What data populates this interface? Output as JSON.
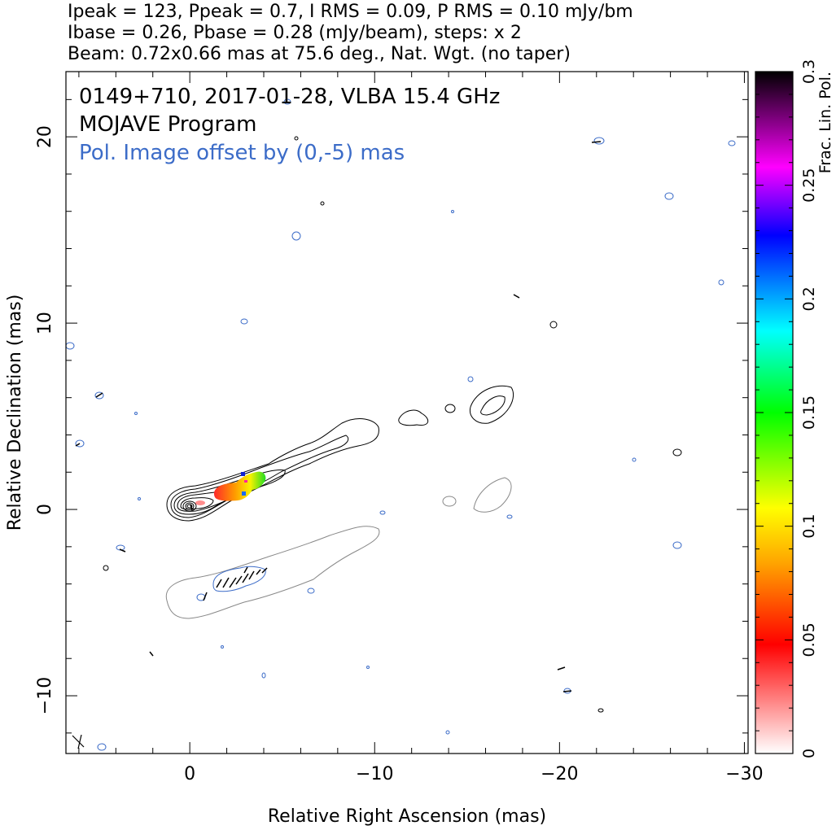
{
  "header": {
    "line1": "Ipeak = 123, Ppeak = 0.7, I RMS = 0.09, P RMS = 0.10 mJy/bm",
    "line2": "Ibase = 0.26, Pbase = 0.28 (mJy/beam), steps: x 2",
    "line3": "Beam: 0.72x0.66 mas at 75.6 deg., Nat. Wgt. (no taper)"
  },
  "chart_data": {
    "type": "contour",
    "title_lines": [
      "0149+710, 2017-01-28, VLBA 15.4 GHz",
      "MOJAVE Program"
    ],
    "annotation": "Pol. Image offset by (0,-5) mas",
    "xlabel": "Relative Right Ascension (mas)",
    "ylabel": "Relative Declination (mas)",
    "xlim": [
      6.7,
      -30.2
    ],
    "ylim": [
      -13.1,
      23.5
    ],
    "x_ticks": [
      {
        "value": 0,
        "label": "0"
      },
      {
        "value": -10,
        "label": "−10"
      },
      {
        "value": -20,
        "label": "−20"
      },
      {
        "value": -30,
        "label": "−30"
      }
    ],
    "y_ticks": [
      {
        "value": -10,
        "label": "−10"
      },
      {
        "value": 0,
        "label": "0"
      },
      {
        "value": 10,
        "label": "10"
      },
      {
        "value": 20,
        "label": "20"
      }
    ],
    "colorbar": {
      "label": "Frac. Lin. Pol.",
      "range": [
        0,
        0.3
      ],
      "ticks": [
        {
          "value": 0,
          "label": "0"
        },
        {
          "value": 0.05,
          "label": "0.05"
        },
        {
          "value": 0.1,
          "label": "0.1"
        },
        {
          "value": 0.15,
          "label": "0.15"
        },
        {
          "value": 0.2,
          "label": "0.2"
        },
        {
          "value": 0.25,
          "label": "0.25"
        },
        {
          "value": 0.3,
          "label": "0.3"
        }
      ],
      "stops": [
        "#ffffff",
        "#ff0000",
        "#ffa500",
        "#ffff00",
        "#00ff00",
        "#00ffff",
        "#0000ff",
        "#ff00ff",
        "#000000"
      ]
    },
    "core": {
      "x": 0,
      "y": 0
    },
    "fracpol_region": {
      "x_range": [
        -1.5,
        -4.3
      ],
      "y_range": [
        0.6,
        2
      ]
    },
    "evpa_ticks_region": {
      "x_range": [
        -0.5,
        -4.3
      ],
      "y_range": [
        -3.2,
        -4.6
      ]
    },
    "contour_colors": {
      "stokes_i": "#000000",
      "pol_intensity": "#3c6cc8",
      "pol_outline": "#888888"
    }
  }
}
